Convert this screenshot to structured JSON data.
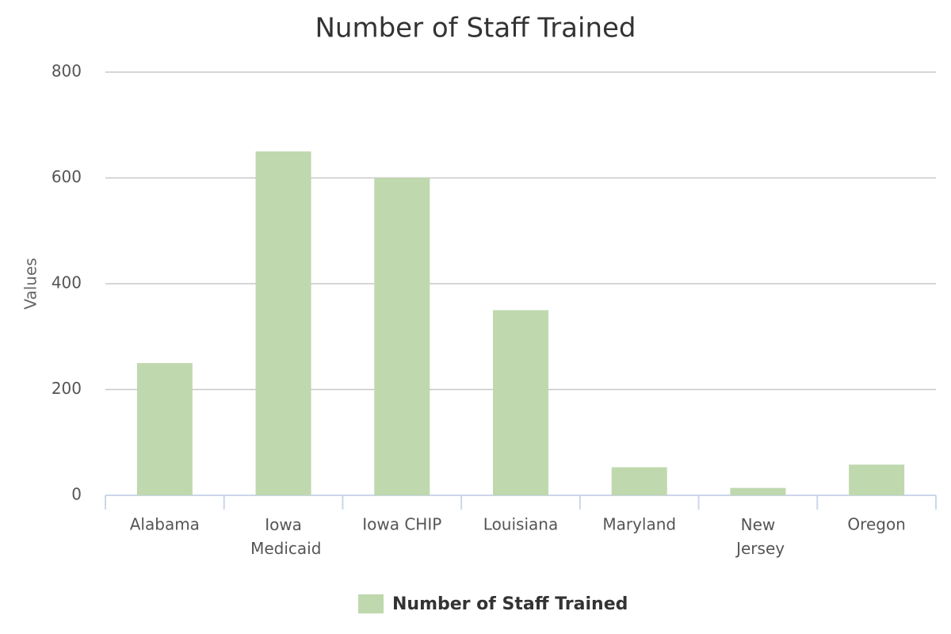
{
  "chart_data": {
    "type": "bar",
    "title": "Number of Staff Trained",
    "y_label": "Values",
    "categories": [
      "Alabama",
      "Iowa Medicaid",
      "Iowa CHIP",
      "Louisiana",
      "Maryland",
      "New Jersey",
      "Oregon"
    ],
    "series": [
      {
        "name": "Number of Staff Trained",
        "color": "#bfd8ae",
        "values": [
          250,
          650,
          600,
          350,
          53,
          14,
          58
        ]
      }
    ],
    "ylim": [
      0,
      800
    ],
    "yticks": [
      0,
      200,
      400,
      600,
      800
    ],
    "grid": true,
    "legend": "bottom"
  }
}
